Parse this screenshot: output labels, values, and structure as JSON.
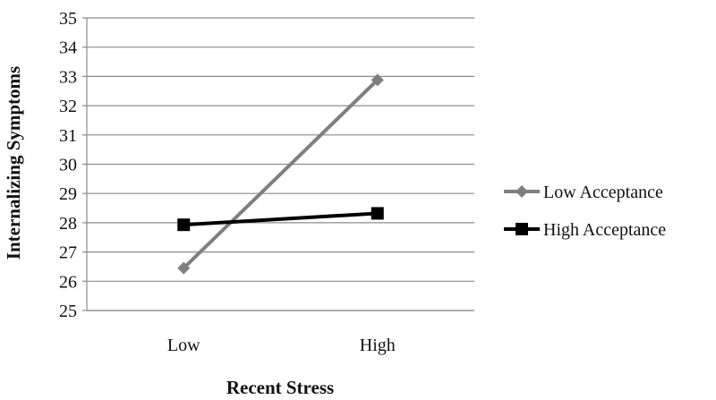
{
  "chart_data": {
    "type": "line",
    "title": "",
    "xlabel": "Recent Stress",
    "ylabel": "Internalizing Symptoms",
    "categories": [
      "Low",
      "High"
    ],
    "ylim": [
      25,
      35
    ],
    "yticks": [
      "25",
      "26",
      "27",
      "28",
      "29",
      "30",
      "31",
      "32",
      "33",
      "34",
      "35"
    ],
    "grid": true,
    "legend_position": "right",
    "series": [
      {
        "name": "Low Acceptance",
        "values": [
          26.45,
          32.88
        ],
        "color": "#7f7f7f",
        "marker": "diamond"
      },
      {
        "name": "High Acceptance",
        "values": [
          27.93,
          28.32
        ],
        "color": "#000000",
        "marker": "square"
      }
    ]
  }
}
